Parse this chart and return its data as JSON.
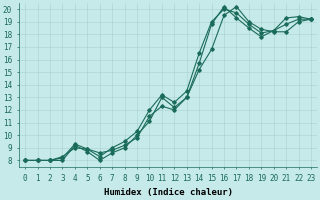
{
  "xlabel": "Humidex (Indice chaleur)",
  "xlim": [
    -0.5,
    23.5
  ],
  "ylim": [
    7.5,
    20.5
  ],
  "xticks": [
    0,
    1,
    2,
    3,
    4,
    5,
    6,
    7,
    8,
    9,
    10,
    11,
    12,
    13,
    14,
    15,
    16,
    17,
    18,
    19,
    20,
    21,
    22,
    23
  ],
  "yticks": [
    8,
    9,
    10,
    11,
    12,
    13,
    14,
    15,
    16,
    17,
    18,
    19,
    20
  ],
  "bg_color": "#c6e9e9",
  "line_color": "#1a6b5a",
  "grid_color": "#a8d0d0",
  "line1_x": [
    0,
    1,
    2,
    3,
    4,
    5,
    6,
    7,
    8,
    9,
    10,
    11,
    12,
    13,
    14,
    15,
    16,
    17,
    18,
    19,
    20,
    21,
    22,
    23
  ],
  "line1_y": [
    8.0,
    8.0,
    8.0,
    8.0,
    9.2,
    8.7,
    8.0,
    8.6,
    9.0,
    10.0,
    11.1,
    13.0,
    12.2,
    13.0,
    15.2,
    16.8,
    19.5,
    20.2,
    19.0,
    18.4,
    18.2,
    18.2,
    19.0,
    19.2
  ],
  "line2_x": [
    0,
    1,
    2,
    3,
    4,
    5,
    6,
    7,
    8,
    9,
    10,
    11,
    12,
    13,
    14,
    15,
    16,
    17,
    18,
    19,
    20,
    21,
    22,
    23
  ],
  "line2_y": [
    8.0,
    8.0,
    8.0,
    8.3,
    9.0,
    8.9,
    8.6,
    8.8,
    9.2,
    9.8,
    11.5,
    12.3,
    12.0,
    13.0,
    15.7,
    18.8,
    20.2,
    19.3,
    18.5,
    17.8,
    18.3,
    19.3,
    19.4,
    19.2
  ],
  "line3_x": [
    0,
    1,
    2,
    3,
    4,
    5,
    6,
    7,
    8,
    9,
    10,
    11,
    12,
    13,
    14,
    15,
    16,
    17,
    18,
    19,
    20,
    21,
    22,
    23
  ],
  "line3_y": [
    8.0,
    8.0,
    8.0,
    8.2,
    9.3,
    8.9,
    8.3,
    9.0,
    9.5,
    10.3,
    12.0,
    13.2,
    12.6,
    13.5,
    16.5,
    19.0,
    20.0,
    19.7,
    18.8,
    18.1,
    18.3,
    18.8,
    19.2,
    19.2
  ],
  "marker": "D",
  "markersize": 1.8,
  "linewidth": 0.8,
  "font_family": "monospace",
  "tick_fontsize": 5.5,
  "label_fontsize": 6.5
}
